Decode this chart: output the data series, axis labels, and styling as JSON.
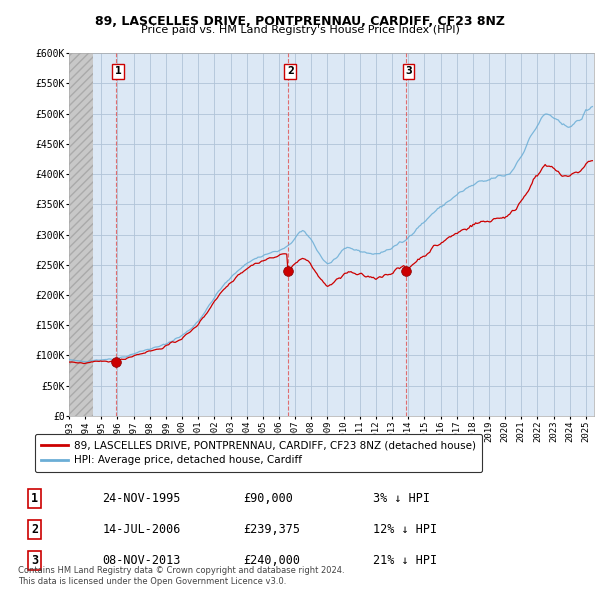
{
  "title": "89, LASCELLES DRIVE, PONTPRENNAU, CARDIFF, CF23 8NZ",
  "subtitle": "Price paid vs. HM Land Registry's House Price Index (HPI)",
  "ylabel_ticks": [
    "£0",
    "£50K",
    "£100K",
    "£150K",
    "£200K",
    "£250K",
    "£300K",
    "£350K",
    "£400K",
    "£450K",
    "£500K",
    "£550K",
    "£600K"
  ],
  "ytick_values": [
    0,
    50000,
    100000,
    150000,
    200000,
    250000,
    300000,
    350000,
    400000,
    450000,
    500000,
    550000,
    600000
  ],
  "xmin": 1993.0,
  "xmax": 2025.5,
  "ymin": 0,
  "ymax": 600000,
  "sale_dates": [
    1995.9,
    2006.54,
    2013.86
  ],
  "sale_prices": [
    90000,
    239375,
    240000
  ],
  "sale_labels": [
    "1",
    "2",
    "3"
  ],
  "hpi_color": "#6baed6",
  "price_color": "#cc0000",
  "sale_dot_color": "#cc0000",
  "hatch_bg_color": "#d8d8d8",
  "chart_bg_color": "#ddeeff",
  "grid_color": "#c8d8e8",
  "legend_label_red": "89, LASCELLES DRIVE, PONTPRENNAU, CARDIFF, CF23 8NZ (detached house)",
  "legend_label_blue": "HPI: Average price, detached house, Cardiff",
  "table_data": [
    [
      "1",
      "24-NOV-1995",
      "£90,000",
      "3% ↓ HPI"
    ],
    [
      "2",
      "14-JUL-2006",
      "£239,375",
      "12% ↓ HPI"
    ],
    [
      "3",
      "08-NOV-2013",
      "£240,000",
      "21% ↓ HPI"
    ]
  ],
  "footer": "Contains HM Land Registry data © Crown copyright and database right 2024.\nThis data is licensed under the Open Government Licence v3.0."
}
